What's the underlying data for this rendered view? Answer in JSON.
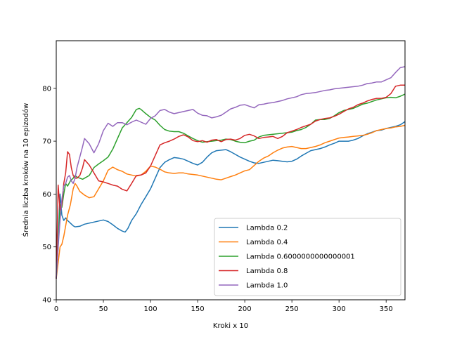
{
  "chart_data": {
    "type": "line",
    "title": "",
    "xlabel": "Kroki x 10",
    "ylabel": "Średnia liczba kroków na 10 epizodów",
    "xlim": [
      0,
      370
    ],
    "ylim": [
      40,
      89
    ],
    "xticks": [
      0,
      50,
      100,
      150,
      200,
      250,
      300,
      350
    ],
    "yticks": [
      40,
      50,
      60,
      70,
      80
    ],
    "grid": false,
    "legend_position": "lower-right",
    "series": [
      {
        "name": "Lambda 0.2",
        "color": "#1f77b4",
        "x": [
          0,
          2,
          4,
          6,
          8,
          10,
          12,
          15,
          18,
          20,
          25,
          30,
          35,
          40,
          45,
          50,
          55,
          60,
          65,
          70,
          73,
          76,
          80,
          85,
          90,
          95,
          100,
          105,
          110,
          115,
          120,
          125,
          130,
          135,
          140,
          145,
          150,
          155,
          160,
          165,
          170,
          175,
          180,
          185,
          190,
          195,
          200,
          205,
          210,
          215,
          220,
          225,
          230,
          235,
          240,
          245,
          250,
          255,
          260,
          265,
          270,
          275,
          280,
          285,
          290,
          295,
          300,
          305,
          310,
          315,
          320,
          325,
          330,
          335,
          340,
          345,
          350,
          355,
          360,
          365,
          370
        ],
        "values": [
          44,
          51,
          60,
          56,
          55,
          55.5,
          55,
          54.5,
          54,
          53.8,
          53.9,
          54.3,
          54.5,
          54.7,
          54.9,
          55.1,
          54.8,
          54.2,
          53.5,
          53,
          52.8,
          53.5,
          55,
          56.3,
          58,
          59.5,
          61,
          63,
          65,
          66,
          66.5,
          66.9,
          66.8,
          66.6,
          66.2,
          65.8,
          65.5,
          66,
          67,
          67.8,
          68.2,
          68.3,
          68.4,
          68,
          67.5,
          67,
          66.6,
          66.2,
          65.9,
          65.8,
          66,
          66.2,
          66.4,
          66.3,
          66.2,
          66.1,
          66.2,
          66.6,
          67.2,
          67.7,
          68.2,
          68.4,
          68.6,
          68.9,
          69.3,
          69.6,
          70,
          70,
          70,
          70.2,
          70.5,
          71,
          71.4,
          71.7,
          72,
          72.1,
          72.4,
          72.6,
          72.8,
          73.1,
          73.7
        ]
      },
      {
        "name": "Lambda 0.4",
        "color": "#ff7f0e",
        "x": [
          0,
          2,
          4,
          6,
          8,
          10,
          12,
          15,
          18,
          20,
          22,
          25,
          30,
          35,
          40,
          45,
          50,
          55,
          60,
          65,
          70,
          75,
          80,
          85,
          90,
          95,
          100,
          105,
          110,
          115,
          120,
          125,
          130,
          135,
          140,
          145,
          150,
          155,
          160,
          165,
          170,
          175,
          180,
          185,
          190,
          195,
          200,
          205,
          210,
          215,
          220,
          225,
          230,
          235,
          240,
          245,
          250,
          255,
          260,
          265,
          270,
          275,
          280,
          285,
          290,
          295,
          300,
          305,
          310,
          315,
          320,
          325,
          330,
          335,
          340,
          345,
          350,
          355,
          360,
          365,
          370
        ],
        "values": [
          44,
          47,
          50,
          50.5,
          52,
          54,
          56,
          58,
          61,
          62,
          61.5,
          60.5,
          59.8,
          59.3,
          59.5,
          61,
          62.5,
          64.5,
          65.1,
          64.6,
          64.3,
          63.8,
          63.6,
          63.4,
          63.6,
          64.3,
          65.3,
          65.1,
          64.7,
          64.2,
          64,
          63.9,
          64,
          64,
          63.8,
          63.7,
          63.6,
          63.4,
          63.2,
          63,
          62.8,
          62.7,
          63,
          63.3,
          63.6,
          64,
          64.4,
          64.6,
          65.4,
          66.2,
          66.8,
          67.2,
          67.8,
          68.3,
          68.7,
          68.9,
          69,
          68.8,
          68.6,
          68.6,
          68.8,
          69,
          69.3,
          69.7,
          70,
          70.3,
          70.6,
          70.7,
          70.8,
          70.9,
          71,
          71.1,
          71.3,
          71.6,
          72,
          72.2,
          72.4,
          72.5,
          72.7,
          72.8,
          73
        ]
      },
      {
        "name": "Lambda 0.6000000000000001",
        "color": "#2ca02c",
        "x": [
          0,
          2,
          4,
          6,
          8,
          10,
          12,
          15,
          18,
          20,
          22,
          25,
          28,
          30,
          35,
          40,
          45,
          50,
          55,
          60,
          65,
          70,
          75,
          80,
          85,
          88,
          90,
          95,
          100,
          105,
          110,
          115,
          120,
          125,
          130,
          135,
          140,
          145,
          150,
          155,
          160,
          165,
          170,
          175,
          180,
          185,
          190,
          195,
          200,
          205,
          210,
          215,
          220,
          225,
          230,
          235,
          240,
          245,
          250,
          255,
          260,
          265,
          270,
          275,
          280,
          285,
          290,
          295,
          300,
          305,
          310,
          315,
          320,
          325,
          330,
          335,
          340,
          345,
          350,
          355,
          360,
          365,
          370
        ],
        "values": [
          44,
          50,
          58,
          57.5,
          60,
          62,
          61.5,
          62.5,
          63,
          63.5,
          63.2,
          63,
          62.8,
          63,
          63.5,
          65,
          65.7,
          66.3,
          67,
          68.5,
          70.5,
          72.5,
          73.5,
          74.5,
          76,
          76.2,
          76,
          75.2,
          74.5,
          74,
          73,
          72.2,
          71.9,
          71.8,
          71.8,
          71.5,
          71,
          70.5,
          70.1,
          69.8,
          69.9,
          70,
          70.1,
          70.2,
          70.4,
          70.3,
          70,
          69.8,
          69.7,
          70,
          70.2,
          70.8,
          71.1,
          71.2,
          71.3,
          71.4,
          71.5,
          71.6,
          71.7,
          72,
          72.2,
          72.6,
          73.2,
          74,
          74.1,
          74.1,
          74.3,
          74.8,
          75.4,
          75.8,
          76,
          76.2,
          76.6,
          77,
          77.2,
          77.5,
          77.8,
          78,
          78.2,
          78.3,
          78.2,
          78.5,
          78.9
        ]
      },
      {
        "name": "Lambda 0.8",
        "color": "#d62728",
        "x": [
          0,
          2,
          4,
          6,
          8,
          10,
          12,
          14,
          16,
          18,
          20,
          22,
          25,
          28,
          30,
          35,
          40,
          45,
          50,
          55,
          60,
          65,
          70,
          75,
          80,
          85,
          90,
          95,
          100,
          105,
          110,
          115,
          120,
          125,
          130,
          135,
          140,
          145,
          150,
          155,
          160,
          165,
          170,
          175,
          180,
          185,
          190,
          195,
          200,
          205,
          210,
          215,
          220,
          225,
          230,
          235,
          240,
          245,
          250,
          255,
          260,
          265,
          270,
          275,
          280,
          285,
          290,
          295,
          300,
          305,
          310,
          315,
          320,
          325,
          330,
          335,
          340,
          345,
          350,
          355,
          360,
          365,
          370
        ],
        "values": [
          44,
          61.7,
          57,
          58,
          62,
          64,
          68,
          67.5,
          65,
          63.5,
          63,
          63,
          63.5,
          65,
          66.5,
          65.5,
          64,
          62.5,
          62.3,
          62,
          61.7,
          61.5,
          60.9,
          60.6,
          62,
          63.5,
          63.6,
          64,
          65.3,
          67.3,
          69.3,
          69.7,
          70,
          70.4,
          70.9,
          71.2,
          70.8,
          70.1,
          69.9,
          70.1,
          69.8,
          70.2,
          70.3,
          69.9,
          70.3,
          70.4,
          70.2,
          70.5,
          71.1,
          71.3,
          71,
          70.5,
          70.7,
          70.8,
          70.9,
          70.5,
          70.9,
          71.6,
          71.9,
          72.2,
          72.6,
          72.9,
          73.2,
          73.8,
          74.1,
          74.3,
          74.4,
          74.7,
          75.1,
          75.6,
          76.1,
          76.4,
          76.9,
          77.2,
          77.6,
          77.9,
          78.1,
          78.1,
          78.3,
          79,
          80.4,
          80.6,
          80.6
        ]
      },
      {
        "name": "Lambda 1.0",
        "color": "#9467bd",
        "x": [
          0,
          2,
          4,
          6,
          8,
          10,
          12,
          14,
          16,
          18,
          20,
          22,
          25,
          28,
          30,
          35,
          40,
          45,
          50,
          55,
          60,
          65,
          70,
          75,
          80,
          85,
          90,
          95,
          100,
          105,
          110,
          115,
          120,
          125,
          130,
          135,
          140,
          145,
          150,
          155,
          160,
          165,
          170,
          175,
          180,
          185,
          190,
          195,
          200,
          205,
          210,
          215,
          220,
          225,
          230,
          235,
          240,
          245,
          250,
          255,
          260,
          265,
          270,
          275,
          280,
          285,
          290,
          295,
          300,
          305,
          310,
          315,
          320,
          325,
          330,
          335,
          340,
          345,
          350,
          355,
          360,
          365,
          370
        ],
        "values": [
          44,
          50,
          55,
          59,
          61.5,
          62,
          63.2,
          63.5,
          62.5,
          62,
          63,
          65,
          67,
          69,
          70.5,
          69.5,
          67.8,
          69.5,
          72,
          73.4,
          72.8,
          73.5,
          73.5,
          73.1,
          73.6,
          74,
          73.6,
          73.2,
          74.3,
          74.8,
          75.8,
          76,
          75.5,
          75.2,
          75.4,
          75.6,
          75.8,
          76,
          75.3,
          74.9,
          74.8,
          74.4,
          74.6,
          74.9,
          75.5,
          76.1,
          76.4,
          76.8,
          76.9,
          76.6,
          76.3,
          76.9,
          77,
          77.2,
          77.3,
          77.5,
          77.7,
          78,
          78.2,
          78.4,
          78.8,
          79,
          79.1,
          79.2,
          79.4,
          79.6,
          79.7,
          79.9,
          80,
          80.1,
          80.2,
          80.3,
          80.4,
          80.6,
          80.9,
          81,
          81.2,
          81.2,
          81.6,
          82,
          83,
          83.9,
          84.1
        ]
      }
    ]
  }
}
